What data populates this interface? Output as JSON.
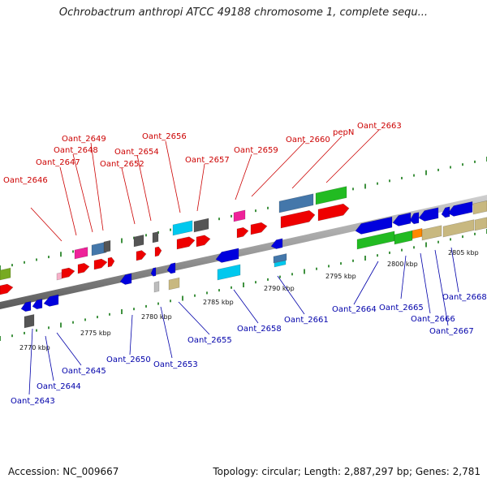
{
  "title": "Ochrobactrum anthropi ATCC 49188 chromosome 1, complete sequ...",
  "footer": {
    "accession": "Accession: NC_009667",
    "summary": "Topology: circular; Length: 2,887,297 bp; Genes: 2,781"
  },
  "colors": {
    "red": "#ee0000",
    "blue": "#0000dd",
    "green": "#22bb22",
    "steelblue": "#4477aa",
    "magenta": "#ee2299",
    "cyan": "#00c8ee",
    "gray": "#555555",
    "khaki": "#c8b880",
    "orange": "#ff8800",
    "olive": "#77aa22",
    "top_label": "#cc0000",
    "bottom_label": "#0000aa",
    "tick": "#117711"
  },
  "kbp_ticks": [
    "2770 kbp",
    "2775 kbp",
    "2780 kbp",
    "2785 kbp",
    "2790 kbp",
    "2795 kbp",
    "2800 kbp",
    "2805 kbp"
  ],
  "top_labels": [
    "Oant_2646",
    "Oant_2647",
    "Oant_2648",
    "Oant_2649",
    "Oant_2652",
    "Oant_2654",
    "Oant_2656",
    "Oant_2657",
    "Oant_2659",
    "Oant_2660",
    "pepN",
    "Oant_2663"
  ],
  "bottom_labels": [
    "Oant_2643",
    "Oant_2644",
    "Oant_2645",
    "Oant_2650",
    "Oant_2653",
    "Oant_2655",
    "Oant_2658",
    "Oant_2661",
    "Oant_2664",
    "Oant_2665",
    "Oant_2666",
    "Oant_2667",
    "Oant_2668"
  ]
}
